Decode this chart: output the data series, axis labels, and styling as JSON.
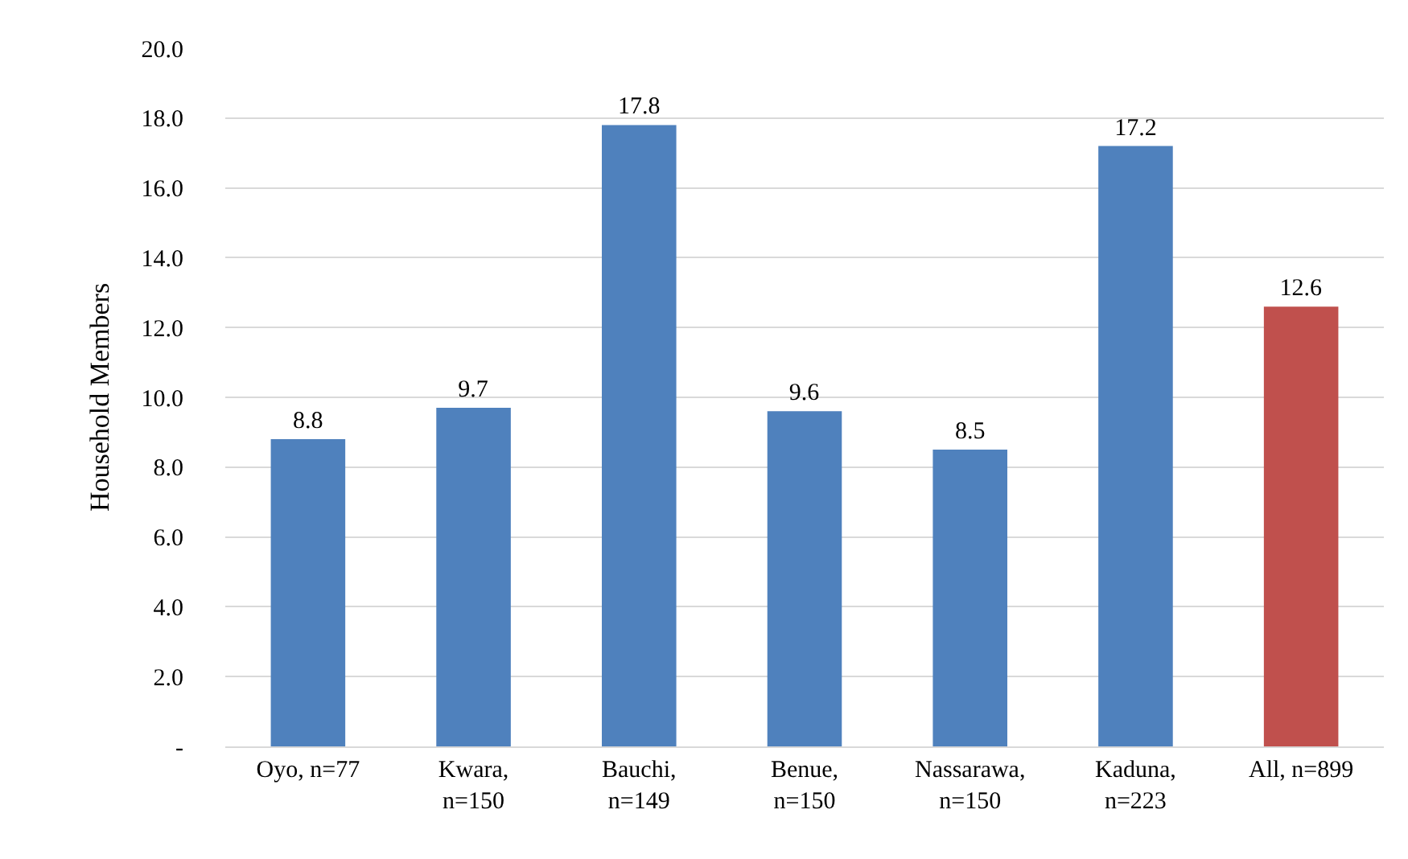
{
  "chart_data": {
    "type": "bar",
    "ylabel": "Household Members",
    "categories": [
      "Oyo, n=77",
      "Kwara,\nn=150",
      "Bauchi,\nn=149",
      "Benue,\nn=150",
      "Nassarawa,\nn=150",
      "Kaduna,\nn=223",
      "All, n=899"
    ],
    "values": [
      8.8,
      9.7,
      17.8,
      9.6,
      8.5,
      17.2,
      12.6
    ],
    "colors": [
      "#4f81bd",
      "#4f81bd",
      "#4f81bd",
      "#4f81bd",
      "#4f81bd",
      "#4f81bd",
      "#c0504d"
    ],
    "ylim": [
      0,
      20
    ],
    "yticks": [
      {
        "value": 0,
        "label": "-"
      },
      {
        "value": 2,
        "label": "2.0"
      },
      {
        "value": 4,
        "label": "4.0"
      },
      {
        "value": 6,
        "label": "6.0"
      },
      {
        "value": 8,
        "label": "8.0"
      },
      {
        "value": 10,
        "label": "10.0"
      },
      {
        "value": 12,
        "label": "12.0"
      },
      {
        "value": 14,
        "label": "14.0"
      },
      {
        "value": 16,
        "label": "16.0"
      },
      {
        "value": 18,
        "label": "18.0"
      },
      {
        "value": 20,
        "label": "20.0"
      }
    ],
    "grid": "y",
    "data_labels": true,
    "legend": false
  }
}
